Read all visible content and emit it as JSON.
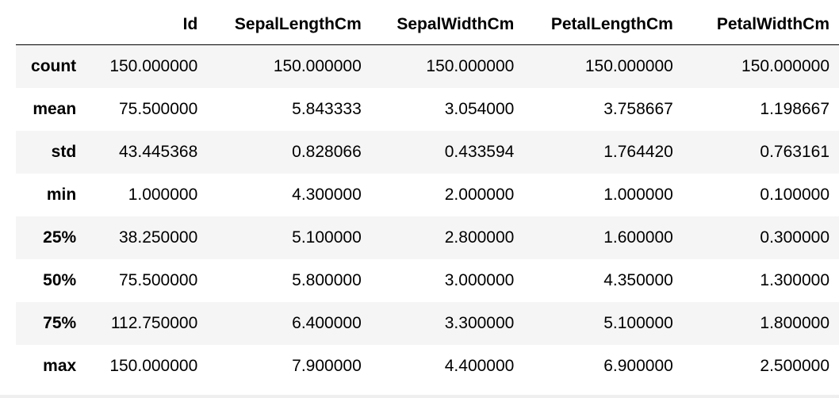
{
  "table": {
    "index_header": "",
    "columns": [
      "Id",
      "SepalLengthCm",
      "SepalWidthCm",
      "PetalLengthCm",
      "PetalWidthCm"
    ],
    "rows": [
      {
        "label": "count",
        "values": [
          "150.000000",
          "150.000000",
          "150.000000",
          "150.000000",
          "150.000000"
        ]
      },
      {
        "label": "mean",
        "values": [
          "75.500000",
          "5.843333",
          "3.054000",
          "3.758667",
          "1.198667"
        ]
      },
      {
        "label": "std",
        "values": [
          "43.445368",
          "0.828066",
          "0.433594",
          "1.764420",
          "0.763161"
        ]
      },
      {
        "label": "min",
        "values": [
          "1.000000",
          "4.300000",
          "2.000000",
          "1.000000",
          "0.100000"
        ]
      },
      {
        "label": "25%",
        "values": [
          "38.250000",
          "5.100000",
          "2.800000",
          "1.600000",
          "0.300000"
        ]
      },
      {
        "label": "50%",
        "values": [
          "75.500000",
          "5.800000",
          "3.000000",
          "4.350000",
          "1.300000"
        ]
      },
      {
        "label": "75%",
        "values": [
          "112.750000",
          "6.400000",
          "3.300000",
          "5.100000",
          "1.800000"
        ]
      },
      {
        "label": "max",
        "values": [
          "150.000000",
          "7.900000",
          "4.400000",
          "6.900000",
          "2.500000"
        ]
      }
    ]
  },
  "colors": {
    "stripe": "#f5f5f5",
    "background": "#ffffff",
    "header_rule": "#000000",
    "text": "#000000"
  }
}
